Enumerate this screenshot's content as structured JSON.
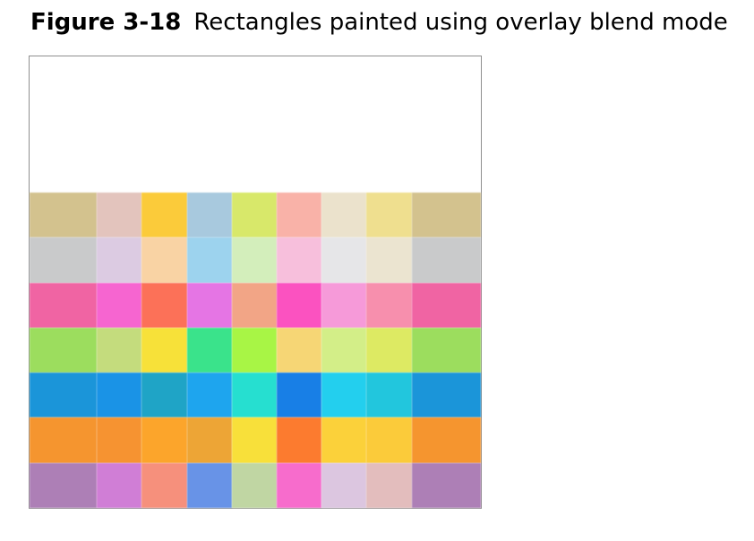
{
  "caption": {
    "label": "Figure 3-18",
    "title": "Rectangles painted using overlay blend mode"
  },
  "figure": {
    "rows": [
      [
        "#d3c28e",
        "#e3c4bd",
        "#fbcb3a",
        "#a8c9de",
        "#d8e86a",
        "#f9b2a8",
        "#ebe2cc",
        "#efdf8f",
        "#d3c28e"
      ],
      [
        "#c9cacb",
        "#dccbe2",
        "#f9d3a4",
        "#9dd3ee",
        "#d3eebb",
        "#f7bfdc",
        "#e6e6e8",
        "#ebe4d0",
        "#c9cacb"
      ],
      [
        "#f064a3",
        "#f665d0",
        "#fc7158",
        "#e575e4",
        "#f2a586",
        "#fb52c0",
        "#f69ad9",
        "#f78fad",
        "#f064a3"
      ],
      [
        "#9cdd5e",
        "#c4dc7d",
        "#f7e139",
        "#3ae38b",
        "#a8f545",
        "#f6d675",
        "#d3ee88",
        "#ddea63",
        "#9cdd5e"
      ],
      [
        "#1b95d9",
        "#1a93e6",
        "#1fa4c6",
        "#1ea5ee",
        "#26dfd0",
        "#187fe6",
        "#23cfee",
        "#22c6dd",
        "#1b95d9"
      ],
      [
        "#f5952f",
        "#f69331",
        "#fca52b",
        "#eda536",
        "#f8e03a",
        "#fc7b2f",
        "#fbd13a",
        "#fbcb3a",
        "#f5952f"
      ],
      [
        "#ad7fb6",
        "#d07ed6",
        "#f6907c",
        "#6893e7",
        "#c0d6a3",
        "#f76ccc",
        "#dcc6e0",
        "#e3bdbd",
        "#ad7fb6"
      ]
    ]
  }
}
